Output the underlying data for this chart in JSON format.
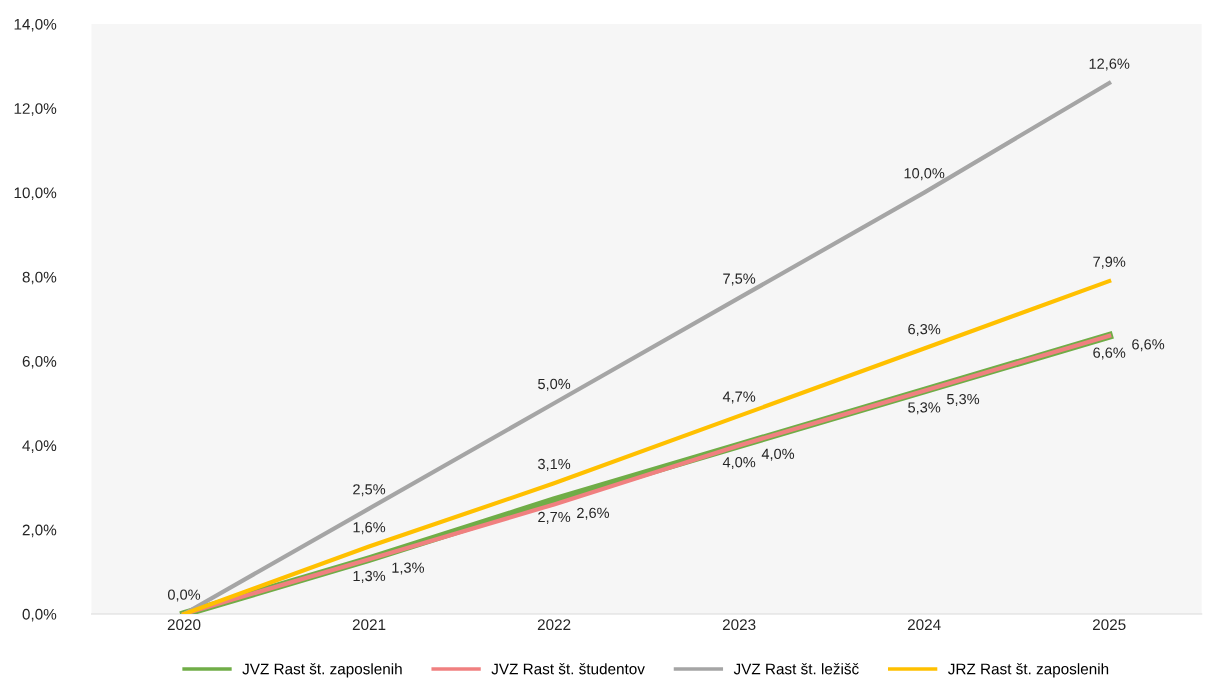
{
  "chart_data": {
    "type": "line",
    "categories": [
      "2020",
      "2021",
      "2022",
      "2023",
      "2024",
      "2025"
    ],
    "series": [
      {
        "name": "JVZ Rast št. zaposlenih",
        "color": "#70ad47",
        "values": [
          0,
          1.3,
          2.7,
          4.0,
          5.3,
          6.6
        ],
        "value_labels": [
          null,
          "1,3%",
          "2,7%",
          "4,0%",
          "5,3%",
          "6,6%"
        ]
      },
      {
        "name": "JVZ Rast št. študentov",
        "color": "#f08080",
        "values": [
          0,
          1.3,
          2.6,
          4.0,
          5.3,
          6.6
        ],
        "value_labels": [
          null,
          "1,3%",
          "2,6%",
          "4,0%",
          "5,3%",
          "6,6%"
        ]
      },
      {
        "name": "JVZ Rast št. ležišč",
        "color": "#a5a5a5",
        "values": [
          0,
          2.5,
          5.0,
          7.5,
          10.0,
          12.6
        ],
        "value_labels": [
          "0,0%",
          "2,5%",
          "5,0%",
          "7,5%",
          "10,0%",
          "12,6%"
        ]
      },
      {
        "name": "JRZ Rast št. zaposlenih",
        "color": "#ffc000",
        "values": [
          0,
          1.6,
          3.1,
          4.7,
          6.3,
          7.9
        ],
        "value_labels": [
          null,
          "1,6%",
          "3,1%",
          "4,7%",
          "6,3%",
          "7,9%"
        ]
      }
    ],
    "ylim": [
      0,
      14
    ],
    "yticks": [
      {
        "value": 0,
        "label": "0,0%"
      },
      {
        "value": 2,
        "label": "2,0%"
      },
      {
        "value": 4,
        "label": "4,0%"
      },
      {
        "value": 6,
        "label": "6,0%"
      },
      {
        "value": 8,
        "label": "8,0%"
      },
      {
        "value": 10,
        "label": "10,0%"
      },
      {
        "value": 12,
        "label": "12,0%"
      },
      {
        "value": 14,
        "label": "14,0%"
      }
    ],
    "grid": false,
    "legend": "bottom",
    "marker": "none",
    "line_style": "solid"
  }
}
